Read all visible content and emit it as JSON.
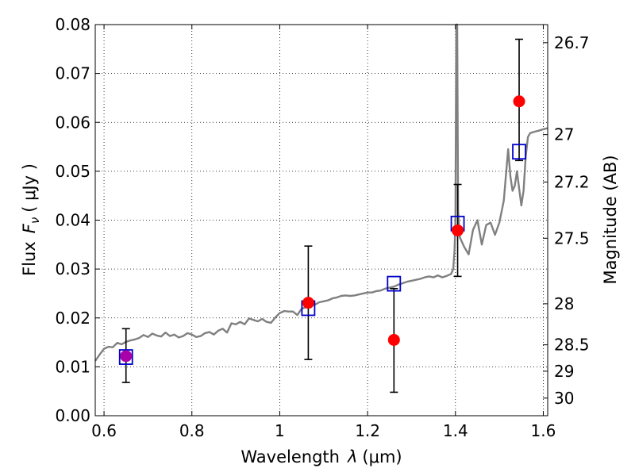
{
  "chart_data": {
    "type": "scatter",
    "xlabel": "Wavelength",
    "xlabel_symbol": "λ",
    "xlabel_unit": "(μm)",
    "ylabel": "Flux",
    "ylabel_symbol": "F",
    "ylabel_symbol_sub": "ν",
    "ylabel_unit": "( μJy )",
    "y2label": "Magnitude (AB)",
    "xlim": [
      0.58,
      1.61
    ],
    "ylim": [
      0.0,
      0.08
    ],
    "grid": true,
    "x_ticks": [
      {
        "value": 0.6,
        "label": "0.6"
      },
      {
        "value": 0.8,
        "label": "0.8"
      },
      {
        "value": 1.0,
        "label": "1"
      },
      {
        "value": 1.2,
        "label": "1.2"
      },
      {
        "value": 1.4,
        "label": "1.4"
      },
      {
        "value": 1.6,
        "label": "1.6"
      }
    ],
    "y_ticks": [
      {
        "value": 0.0,
        "label": "0.00"
      },
      {
        "value": 0.01,
        "label": "0.01"
      },
      {
        "value": 0.02,
        "label": "0.02"
      },
      {
        "value": 0.03,
        "label": "0.03"
      },
      {
        "value": 0.04,
        "label": "0.04"
      },
      {
        "value": 0.05,
        "label": "0.05"
      },
      {
        "value": 0.06,
        "label": "0.06"
      },
      {
        "value": 0.07,
        "label": "0.07"
      },
      {
        "value": 0.08,
        "label": "0.08"
      }
    ],
    "y2_ticks": [
      {
        "flux": 0.0763,
        "label": "26.7"
      },
      {
        "flux": 0.0575,
        "label": "27"
      },
      {
        "flux": 0.0478,
        "label": "27.2"
      },
      {
        "flux": 0.0363,
        "label": "27.5"
      },
      {
        "flux": 0.0229,
        "label": "28"
      },
      {
        "flux": 0.0145,
        "label": "28.5"
      },
      {
        "flux": 0.0091,
        "label": "29"
      },
      {
        "flux": 0.0036,
        "label": "30"
      }
    ],
    "model_spectrum": {
      "color": "#808080",
      "points": [
        [
          0.58,
          0.0112
        ],
        [
          0.59,
          0.0125
        ],
        [
          0.6,
          0.0137
        ],
        [
          0.61,
          0.0141
        ],
        [
          0.62,
          0.014
        ],
        [
          0.63,
          0.0149
        ],
        [
          0.64,
          0.0146
        ],
        [
          0.65,
          0.0151
        ],
        [
          0.66,
          0.0154
        ],
        [
          0.67,
          0.0156
        ],
        [
          0.68,
          0.0159
        ],
        [
          0.69,
          0.0165
        ],
        [
          0.7,
          0.0161
        ],
        [
          0.71,
          0.0168
        ],
        [
          0.72,
          0.0164
        ],
        [
          0.73,
          0.0162
        ],
        [
          0.74,
          0.017
        ],
        [
          0.75,
          0.0163
        ],
        [
          0.76,
          0.0166
        ],
        [
          0.77,
          0.016
        ],
        [
          0.78,
          0.0163
        ],
        [
          0.79,
          0.0169
        ],
        [
          0.8,
          0.0166
        ],
        [
          0.81,
          0.0161
        ],
        [
          0.82,
          0.0163
        ],
        [
          0.83,
          0.0169
        ],
        [
          0.84,
          0.0171
        ],
        [
          0.85,
          0.0166
        ],
        [
          0.86,
          0.0174
        ],
        [
          0.87,
          0.0178
        ],
        [
          0.88,
          0.017
        ],
        [
          0.89,
          0.0189
        ],
        [
          0.9,
          0.0187
        ],
        [
          0.91,
          0.0192
        ],
        [
          0.92,
          0.0187
        ],
        [
          0.93,
          0.0199
        ],
        [
          0.94,
          0.0196
        ],
        [
          0.95,
          0.0193
        ],
        [
          0.96,
          0.0198
        ],
        [
          0.97,
          0.0192
        ],
        [
          0.98,
          0.019
        ],
        [
          0.99,
          0.0201
        ],
        [
          1.0,
          0.021
        ],
        [
          1.01,
          0.0214
        ],
        [
          1.02,
          0.0213
        ],
        [
          1.03,
          0.0213
        ],
        [
          1.04,
          0.0206
        ],
        [
          1.05,
          0.0219
        ],
        [
          1.06,
          0.0222
        ],
        [
          1.07,
          0.0226
        ],
        [
          1.08,
          0.0227
        ],
        [
          1.09,
          0.0232
        ],
        [
          1.1,
          0.0234
        ],
        [
          1.11,
          0.0236
        ],
        [
          1.12,
          0.024
        ],
        [
          1.13,
          0.0242
        ],
        [
          1.14,
          0.0245
        ],
        [
          1.15,
          0.0246
        ],
        [
          1.16,
          0.0245
        ],
        [
          1.17,
          0.0246
        ],
        [
          1.18,
          0.0248
        ],
        [
          1.19,
          0.025
        ],
        [
          1.2,
          0.0252
        ],
        [
          1.21,
          0.0252
        ],
        [
          1.22,
          0.0255
        ],
        [
          1.23,
          0.0256
        ],
        [
          1.24,
          0.026
        ],
        [
          1.25,
          0.0262
        ],
        [
          1.26,
          0.0264
        ],
        [
          1.27,
          0.0268
        ],
        [
          1.28,
          0.0271
        ],
        [
          1.29,
          0.0274
        ],
        [
          1.3,
          0.0276
        ],
        [
          1.31,
          0.0278
        ],
        [
          1.32,
          0.028
        ],
        [
          1.33,
          0.0283
        ],
        [
          1.34,
          0.0285
        ],
        [
          1.35,
          0.0283
        ],
        [
          1.36,
          0.0287
        ],
        [
          1.37,
          0.0283
        ],
        [
          1.38,
          0.0286
        ],
        [
          1.39,
          0.029
        ],
        [
          1.395,
          0.03
        ],
        [
          1.398,
          0.034
        ],
        [
          1.4,
          0.04
        ],
        [
          1.402,
          0.08
        ],
        [
          1.404,
          0.08
        ],
        [
          1.406,
          0.042
        ],
        [
          1.41,
          0.0365
        ],
        [
          1.42,
          0.0345
        ],
        [
          1.43,
          0.033
        ],
        [
          1.44,
          0.038
        ],
        [
          1.45,
          0.04
        ],
        [
          1.46,
          0.035
        ],
        [
          1.47,
          0.039
        ],
        [
          1.48,
          0.0395
        ],
        [
          1.49,
          0.037
        ],
        [
          1.5,
          0.0395
        ],
        [
          1.51,
          0.044
        ],
        [
          1.52,
          0.0545
        ],
        [
          1.525,
          0.049
        ],
        [
          1.53,
          0.046
        ],
        [
          1.535,
          0.047
        ],
        [
          1.54,
          0.05
        ],
        [
          1.545,
          0.0465
        ],
        [
          1.55,
          0.043
        ],
        [
          1.555,
          0.046
        ],
        [
          1.56,
          0.053
        ],
        [
          1.565,
          0.057
        ],
        [
          1.57,
          0.0578
        ],
        [
          1.58,
          0.0581
        ],
        [
          1.59,
          0.0583
        ],
        [
          1.6,
          0.0586
        ],
        [
          1.61,
          0.0588
        ]
      ]
    },
    "series": [
      {
        "marker": "square",
        "color": "#0000cc",
        "points": [
          {
            "x": 0.65,
            "y": 0.012
          },
          {
            "x": 1.065,
            "y": 0.022
          },
          {
            "x": 1.26,
            "y": 0.027
          },
          {
            "x": 1.405,
            "y": 0.0393
          },
          {
            "x": 1.545,
            "y": 0.054
          }
        ]
      },
      {
        "marker": "circle",
        "color": "#ff0000",
        "points": [
          {
            "x": 0.65,
            "y": 0.0122,
            "yerr": [
              0.0068,
              0.0178
            ],
            "color": "#aa00aa"
          },
          {
            "x": 1.065,
            "y": 0.0231,
            "yerr": [
              0.0115,
              0.0347
            ]
          },
          {
            "x": 1.26,
            "y": 0.0155,
            "yerr": [
              0.0048,
              0.026
            ]
          },
          {
            "x": 1.405,
            "y": 0.0379,
            "yerr": [
              0.0285,
              0.0473
            ]
          },
          {
            "x": 1.545,
            "y": 0.0643,
            "yerr": [
              0.0522,
              0.077
            ]
          }
        ]
      }
    ]
  }
}
